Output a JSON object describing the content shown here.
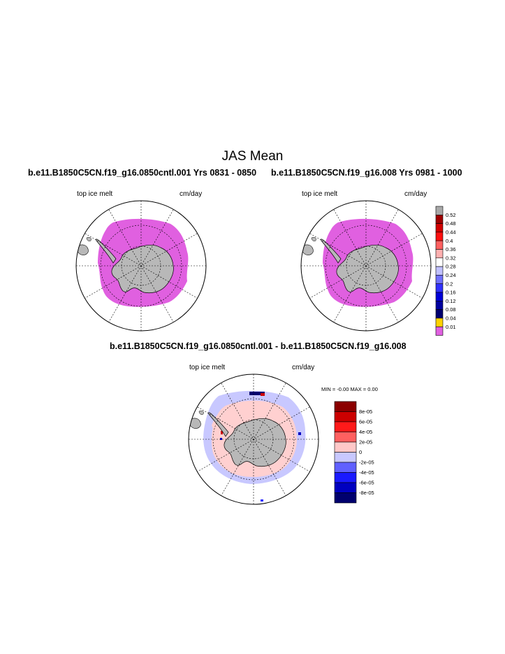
{
  "title": "JAS Mean",
  "panels": [
    {
      "id": "control",
      "title": "b.e11.B1850C5CN.f19_g16.0850cntl.001  Yrs 0831 - 0850",
      "variable": "top ice melt",
      "units": "cm/day"
    },
    {
      "id": "experiment",
      "title": "b.e11.B1850C5CN.f19_g16.008  Yrs 0981 - 1000",
      "variable": "top ice melt",
      "units": "cm/day"
    },
    {
      "id": "difference",
      "title": "b.e11.B1850C5CN.f19_g16.0850cntl.001 - b.e11.B1850C5CN.f19_g16.008",
      "variable": "top ice melt",
      "units": "cm/day",
      "minmax_text": "MIN =  -0.00 MAX =   0.00"
    }
  ],
  "colorbar_top": {
    "labels": [
      "0.52",
      "0.48",
      "0.44",
      "0.4",
      "0.36",
      "0.32",
      "0.28",
      "0.24",
      "0.2",
      "0.16",
      "0.12",
      "0.08",
      "0.04",
      "0.01"
    ],
    "colors": [
      "#a8a8a8",
      "#a00000",
      "#d20000",
      "#ff1010",
      "#ff6060",
      "#ffb0b0",
      "#ffffff",
      "#c0c0ff",
      "#7070ff",
      "#3030ff",
      "#0000d8",
      "#0000a0",
      "#000070",
      "#ffd200",
      "#e060e0"
    ]
  },
  "colorbar_diff": {
    "labels": [
      "8e-05",
      "6e-05",
      "4e-05",
      "2e-05",
      "0",
      "-2e-05",
      "-4e-05",
      "-6e-05",
      "-8e-05"
    ],
    "colors": [
      "#8b0000",
      "#cc0000",
      "#ff1a1a",
      "#ff6060",
      "#ffc8c8",
      "#c8c8ff",
      "#6060ff",
      "#1a1aff",
      "#0000c0",
      "#00006e"
    ]
  },
  "map_colors": {
    "ice_melt": "#e060e0",
    "land": "#b8b8b8",
    "diff_positive": "#ffd0d0",
    "diff_negative": "#c8c8ff"
  }
}
